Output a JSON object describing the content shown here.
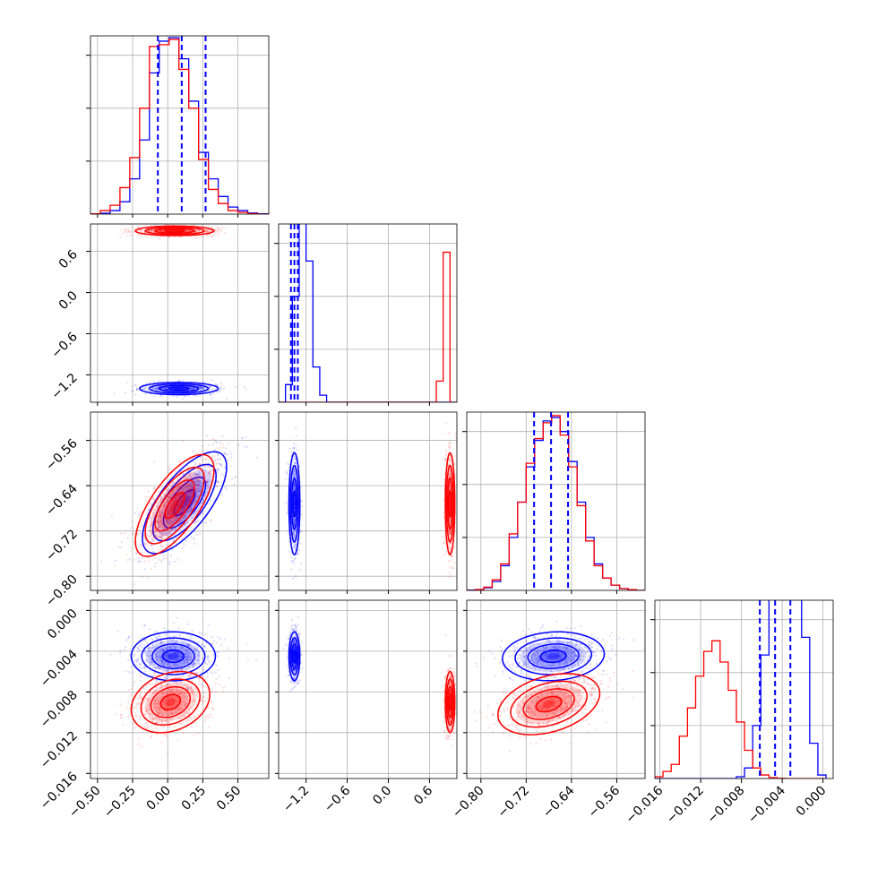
{
  "chart_data": {
    "type": "corner",
    "title": "",
    "colors": {
      "series_a": "#0000ff",
      "series_b": "#ff0000",
      "grid": "#b0b0b0",
      "frame": "#000000"
    },
    "grid": true,
    "dimensions": [
      {
        "index": 0,
        "range": [
          -0.55,
          0.72
        ],
        "ticks": [
          -0.5,
          -0.25,
          0.0,
          0.25,
          0.5
        ],
        "tick_labels": [
          "−0.50",
          "−0.25",
          "0.00",
          "0.25",
          "0.50"
        ]
      },
      {
        "index": 1,
        "range": [
          -1.6,
          1.0
        ],
        "ticks": [
          -1.2,
          -0.6,
          0.0,
          0.6
        ],
        "tick_labels": [
          "−1.2",
          "−0.6",
          "0.0",
          "0.6"
        ]
      },
      {
        "index": 2,
        "range": [
          -0.825,
          -0.51
        ],
        "ticks": [
          -0.8,
          -0.72,
          -0.64,
          -0.56
        ],
        "tick_labels": [
          "−0.80",
          "−0.72",
          "−0.64",
          "−0.56"
        ]
      },
      {
        "index": 3,
        "range": [
          -0.0165,
          0.001
        ],
        "ticks": [
          -0.016,
          -0.012,
          -0.008,
          -0.004,
          0.0
        ],
        "tick_labels": [
          "−0.016",
          "−0.012",
          "−0.008",
          "−0.004",
          "0.000"
        ]
      }
    ],
    "histograms": [
      {
        "dim": 0,
        "edges": [
          -0.55,
          -0.48,
          -0.41,
          -0.34,
          -0.27,
          -0.2,
          -0.13,
          -0.06,
          0.01,
          0.08,
          0.15,
          0.22,
          0.29,
          0.36,
          0.43,
          0.5,
          0.57,
          0.64,
          0.72
        ],
        "blue": [
          0.0,
          0.005,
          0.02,
          0.07,
          0.2,
          0.42,
          0.8,
          0.98,
          1.0,
          0.88,
          0.64,
          0.35,
          0.2,
          0.1,
          0.04,
          0.02,
          0.006,
          0.002
        ],
        "red": [
          0.002,
          0.02,
          0.05,
          0.15,
          0.32,
          0.6,
          0.95,
          0.96,
          0.99,
          0.82,
          0.6,
          0.31,
          0.14,
          0.06,
          0.02,
          0.01,
          0.003,
          0.0
        ],
        "quantiles": [
          -0.07,
          0.1,
          0.27
        ]
      },
      {
        "dim": 1,
        "edges": [
          -1.6,
          -1.5,
          -1.4,
          -1.3,
          -1.2,
          -1.1,
          -1.0,
          -0.9,
          -0.8,
          -0.7,
          -0.6,
          -0.5,
          -0.4,
          -0.3,
          -0.2,
          -0.1,
          0.0,
          0.1,
          0.2,
          0.3,
          0.4,
          0.5,
          0.6,
          0.7,
          0.8,
          0.9,
          1.0
        ],
        "blue": [
          0.0,
          0.05,
          0.3,
          0.9,
          0.4,
          0.1,
          0.02,
          0.0,
          0.0,
          0.0,
          0.0,
          0.0,
          0.0,
          0.0,
          0.0,
          0.0,
          0.0,
          0.0,
          0.0,
          0.0,
          0.0,
          0.0,
          0.0,
          0.0,
          0.0,
          0.0
        ],
        "red": [
          0.0,
          0.0,
          0.0,
          0.0,
          0.0,
          0.0,
          0.0,
          0.0,
          0.0,
          0.0,
          0.0,
          0.0,
          0.0,
          0.0,
          0.0,
          0.0,
          0.0,
          0.0,
          0.0,
          0.0,
          0.0,
          0.0,
          0.0,
          0.12,
          0.85,
          0.0
        ],
        "blue_scale": 0.5,
        "quantiles": [
          -1.42,
          -1.37,
          -1.32
        ]
      },
      {
        "dim": 2,
        "edges": [
          -0.825,
          -0.81,
          -0.795,
          -0.78,
          -0.765,
          -0.75,
          -0.735,
          -0.72,
          -0.705,
          -0.69,
          -0.675,
          -0.66,
          -0.645,
          -0.63,
          -0.615,
          -0.6,
          -0.585,
          -0.57,
          -0.555,
          -0.54,
          -0.525,
          -0.51
        ],
        "blue": [
          0.002,
          0.005,
          0.015,
          0.05,
          0.14,
          0.3,
          0.5,
          0.7,
          0.85,
          0.96,
          0.98,
          0.9,
          0.73,
          0.5,
          0.3,
          0.15,
          0.07,
          0.03,
          0.01,
          0.004,
          0.0
        ],
        "red": [
          0.0,
          0.004,
          0.018,
          0.06,
          0.15,
          0.32,
          0.5,
          0.72,
          0.86,
          0.95,
          0.99,
          0.88,
          0.7,
          0.48,
          0.28,
          0.14,
          0.07,
          0.03,
          0.01,
          0.004,
          0.0
        ],
        "quantiles": [
          -0.706,
          -0.676,
          -0.646
        ]
      },
      {
        "dim": 3,
        "edges": [
          -0.0165,
          -0.0157,
          -0.0149,
          -0.0141,
          -0.0133,
          -0.0125,
          -0.0117,
          -0.0109,
          -0.0101,
          -0.0093,
          -0.0085,
          -0.0077,
          -0.0069,
          -0.0061,
          -0.0053,
          -0.0045,
          -0.0037,
          -0.0029,
          -0.0021,
          -0.0013,
          -0.0005,
          0.0003
        ],
        "blue": [
          0.0,
          0.0,
          0.0,
          0.0,
          0.0,
          0.0,
          0.0,
          0.0,
          0.0,
          0.0,
          0.005,
          0.03,
          0.15,
          0.35,
          0.72,
          0.98,
          1.0,
          0.78,
          0.4,
          0.1,
          0.01
        ],
        "red": [
          0.01,
          0.04,
          0.08,
          0.24,
          0.4,
          0.58,
          0.72,
          0.78,
          0.66,
          0.5,
          0.32,
          0.16,
          0.06,
          0.02,
          0.005,
          0.001,
          0.0,
          0.0,
          0.0,
          0.0,
          0.0
        ],
        "blue_scale": 0.5,
        "quantiles": [
          -0.0062,
          -0.0047,
          -0.0032
        ]
      }
    ],
    "pairs": [
      {
        "x": 0,
        "y": 1,
        "blue": {
          "cx": 0.08,
          "cy": -1.4,
          "sx": 0.14,
          "sy": 0.045,
          "rho": 0.0
        },
        "red": {
          "cx": 0.05,
          "cy": 0.9,
          "sx": 0.14,
          "sy": 0.035,
          "rho": 0.0
        }
      },
      {
        "x": 0,
        "y": 2,
        "blue": {
          "cx": 0.12,
          "cy": -0.67,
          "sx": 0.15,
          "sy": 0.045,
          "rho": 0.7
        },
        "red": {
          "cx": 0.05,
          "cy": -0.675,
          "sx": 0.14,
          "sy": 0.045,
          "rho": 0.7
        }
      },
      {
        "x": 0,
        "y": 3,
        "blue": {
          "cx": 0.04,
          "cy": -0.0045,
          "sx": 0.15,
          "sy": 0.0012,
          "rho": 0.0
        },
        "red": {
          "cx": 0.02,
          "cy": -0.009,
          "sx": 0.14,
          "sy": 0.0015,
          "rho": 0.25
        }
      },
      {
        "x": 1,
        "y": 2,
        "blue": {
          "cx": -1.37,
          "cy": -0.672,
          "sx": 0.04,
          "sy": 0.045,
          "rho": 0.0
        },
        "red": {
          "cx": 0.9,
          "cy": -0.672,
          "sx": 0.035,
          "sy": 0.045,
          "rho": 0.0
        }
      },
      {
        "x": 1,
        "y": 3,
        "blue": {
          "cx": -1.37,
          "cy": -0.0045,
          "sx": 0.04,
          "sy": 0.0012,
          "rho": 0.0
        },
        "red": {
          "cx": 0.9,
          "cy": -0.009,
          "sx": 0.035,
          "sy": 0.0015,
          "rho": 0.0
        }
      },
      {
        "x": 2,
        "y": 3,
        "blue": {
          "cx": -0.672,
          "cy": -0.0045,
          "sx": 0.045,
          "sy": 0.0012,
          "rho": 0.1
        },
        "red": {
          "cx": -0.68,
          "cy": -0.0092,
          "sx": 0.045,
          "sy": 0.0015,
          "rho": 0.35
        }
      }
    ]
  }
}
